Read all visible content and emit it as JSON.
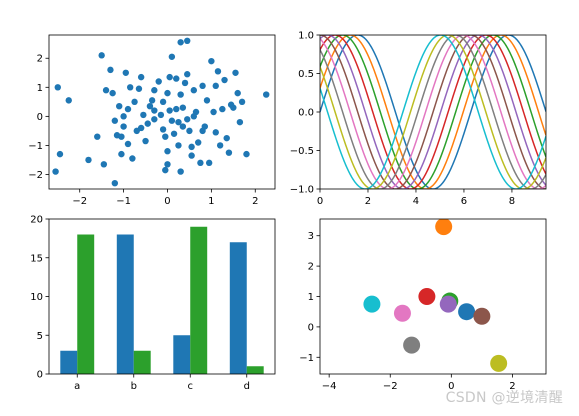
{
  "watermark": "CSDN @逆境清醒",
  "colors": {
    "tab": [
      "#1f77b4",
      "#ff7f0e",
      "#2ca02c",
      "#d62728",
      "#9467bd",
      "#8c564b",
      "#e377c2",
      "#7f7f7f",
      "#bcbd22",
      "#17becf"
    ]
  },
  "chart_data": [
    {
      "type": "scatter",
      "title": "",
      "xlabel": "",
      "ylabel": "",
      "xlim": [
        -2.7,
        2.45
      ],
      "ylim": [
        -2.5,
        2.8
      ],
      "xticks": [
        -2,
        -1,
        0,
        1,
        2
      ],
      "yticks": [
        -2,
        -1,
        0,
        1,
        2
      ],
      "color": "#1f77b4",
      "points": [
        [
          -2.55,
          -1.9
        ],
        [
          -2.5,
          1.0
        ],
        [
          -2.45,
          -1.3
        ],
        [
          -2.25,
          0.55
        ],
        [
          -1.8,
          -1.5
        ],
        [
          -1.6,
          -0.7
        ],
        [
          -1.5,
          2.1
        ],
        [
          -1.45,
          -1.65
        ],
        [
          -1.4,
          0.9
        ],
        [
          -1.3,
          1.6
        ],
        [
          -1.25,
          0.8
        ],
        [
          -1.2,
          -0.15
        ],
        [
          -1.2,
          -2.3
        ],
        [
          -1.15,
          -0.65
        ],
        [
          -1.1,
          0.35
        ],
        [
          -1.05,
          -1.3
        ],
        [
          -1.05,
          -0.7
        ],
        [
          -1.0,
          0.0
        ],
        [
          -1.0,
          -0.35
        ],
        [
          -0.95,
          1.5
        ],
        [
          -0.9,
          0.25
        ],
        [
          -0.9,
          -0.95
        ],
        [
          -0.85,
          1.0
        ],
        [
          -0.8,
          -1.45
        ],
        [
          -0.75,
          0.5
        ],
        [
          -0.7,
          -0.5
        ],
        [
          -0.65,
          0.95
        ],
        [
          -0.6,
          1.35
        ],
        [
          -0.55,
          0.05
        ],
        [
          -0.5,
          -0.85
        ],
        [
          -0.45,
          -0.25
        ],
        [
          -0.4,
          0.35
        ],
        [
          -0.35,
          0.55
        ],
        [
          -0.3,
          0.9
        ],
        [
          -0.3,
          -0.1
        ],
        [
          -0.2,
          1.2
        ],
        [
          -0.15,
          0.05
        ],
        [
          -0.1,
          -0.45
        ],
        [
          -0.05,
          -0.7
        ],
        [
          0.0,
          -1.2
        ],
        [
          -0.05,
          -1.85
        ],
        [
          0.0,
          -1.65
        ],
        [
          0.05,
          1.35
        ],
        [
          0.05,
          0.2
        ],
        [
          0.1,
          2.05
        ],
        [
          0.15,
          -0.6
        ],
        [
          0.2,
          0.25
        ],
        [
          0.2,
          1.3
        ],
        [
          0.25,
          -0.2
        ],
        [
          0.25,
          -1.0
        ],
        [
          0.3,
          0.75
        ],
        [
          0.3,
          -1.9
        ],
        [
          0.35,
          0.3
        ],
        [
          0.4,
          1.15
        ],
        [
          0.45,
          -0.1
        ],
        [
          0.45,
          1.45
        ],
        [
          0.5,
          -0.5
        ],
        [
          0.55,
          -1.05
        ],
        [
          0.55,
          -1.35
        ],
        [
          0.6,
          0.9
        ],
        [
          0.65,
          0.15
        ],
        [
          0.7,
          -0.9
        ],
        [
          0.75,
          -1.6
        ],
        [
          0.8,
          1.05
        ],
        [
          0.85,
          -0.35
        ],
        [
          0.9,
          0.55
        ],
        [
          0.95,
          -1.6
        ],
        [
          1.0,
          1.9
        ],
        [
          1.05,
          0.15
        ],
        [
          1.1,
          1.05
        ],
        [
          1.1,
          -0.55
        ],
        [
          1.15,
          1.55
        ],
        [
          1.2,
          -1.0
        ],
        [
          1.25,
          0.25
        ],
        [
          1.3,
          1.25
        ],
        [
          1.35,
          -0.75
        ],
        [
          1.4,
          -1.25
        ],
        [
          1.45,
          0.4
        ],
        [
          1.5,
          0.3
        ],
        [
          1.55,
          1.5
        ],
        [
          1.6,
          0.8
        ],
        [
          1.65,
          -0.2
        ],
        [
          1.7,
          0.5
        ],
        [
          1.8,
          -1.3
        ],
        [
          2.25,
          0.75
        ],
        [
          0.3,
          2.55
        ],
        [
          0.45,
          2.6
        ],
        [
          0.6,
          0.0
        ],
        [
          0.8,
          -0.5
        ],
        [
          -0.1,
          0.5
        ],
        [
          0.1,
          -0.15
        ],
        [
          -0.3,
          0.2
        ],
        [
          0.35,
          -0.35
        ],
        [
          -0.6,
          -0.4
        ],
        [
          0.0,
          0.8
        ]
      ]
    },
    {
      "type": "line",
      "title": "",
      "xlabel": "",
      "ylabel": "",
      "xlim": [
        0,
        9.42
      ],
      "ylim": [
        -1.0,
        1.0
      ],
      "xticks": [
        0,
        2,
        4,
        6,
        8
      ],
      "yticks": [
        -1.0,
        -0.5,
        0.0,
        0.5,
        1.0
      ],
      "series_count": 10,
      "function": "sin(x + i*pi/10)"
    },
    {
      "type": "bar",
      "title": "",
      "xlabel": "",
      "ylabel": "",
      "categories": [
        "a",
        "b",
        "c",
        "d"
      ],
      "ylim": [
        0,
        20
      ],
      "yticks": [
        0,
        5,
        10,
        15,
        20
      ],
      "series": [
        {
          "color": "#1f77b4",
          "values": [
            3,
            18,
            5,
            17
          ]
        },
        {
          "color": "#2ca02c",
          "values": [
            18,
            3,
            19,
            1
          ]
        }
      ]
    },
    {
      "type": "scatter",
      "title": "",
      "xlabel": "",
      "ylabel": "",
      "xlim": [
        -4.3,
        3.1
      ],
      "ylim": [
        -1.55,
        3.55
      ],
      "xticks": [
        -4,
        -2,
        0,
        2
      ],
      "yticks": [
        -1,
        0,
        1,
        2,
        3
      ],
      "points": [
        {
          "x": 0.5,
          "y": 0.5,
          "color": "#1f77b4"
        },
        {
          "x": -0.25,
          "y": 3.3,
          "color": "#ff7f0e"
        },
        {
          "x": -0.05,
          "y": 0.85,
          "color": "#2ca02c"
        },
        {
          "x": -0.8,
          "y": 1.0,
          "color": "#d62728"
        },
        {
          "x": -0.1,
          "y": 0.75,
          "color": "#9467bd"
        },
        {
          "x": 1.0,
          "y": 0.35,
          "color": "#8c564b"
        },
        {
          "x": -1.6,
          "y": 0.45,
          "color": "#e377c2"
        },
        {
          "x": -1.3,
          "y": -0.6,
          "color": "#7f7f7f"
        },
        {
          "x": 1.55,
          "y": -1.2,
          "color": "#bcbd22"
        },
        {
          "x": -2.6,
          "y": 0.75,
          "color": "#17becf"
        }
      ]
    }
  ]
}
